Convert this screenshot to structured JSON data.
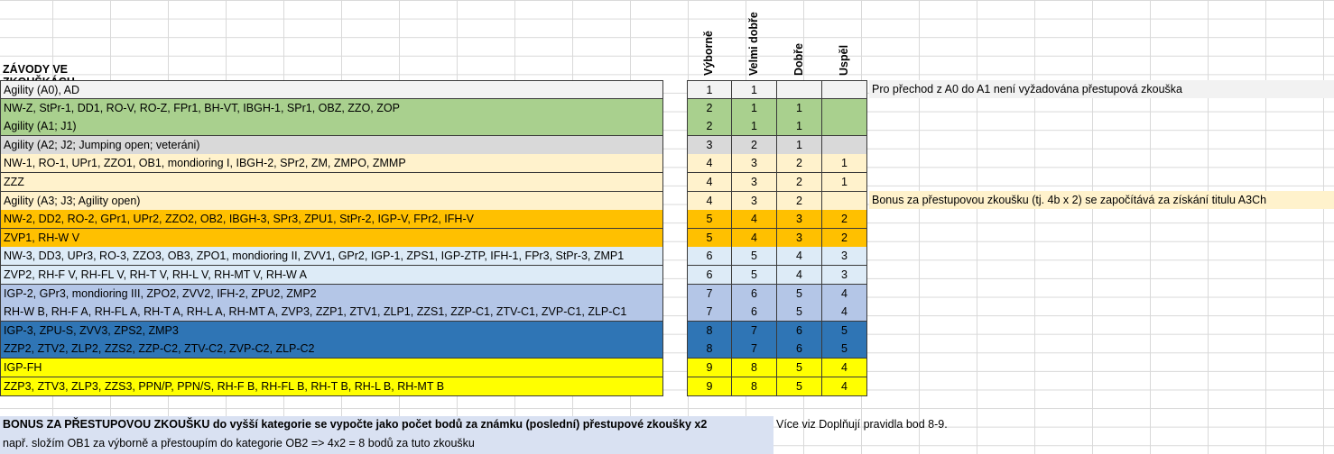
{
  "title": "ZÁVODY VE ZKOUŠKÁCH",
  "headers": [
    "Výborně",
    "Velmi dobře",
    "Dobře",
    "Uspěl"
  ],
  "rows": [
    {
      "name": "Agility (A0), AD",
      "scores": [
        "1",
        "1",
        "",
        ""
      ],
      "color": "#f2f2f2"
    },
    {
      "name": "NW-Z, StPr-1, DD1, RO-V, RO-Z, FPr1, BH-VT, IBGH-1, SPr1, OBZ, ZZO, ZOP",
      "scores": [
        "2",
        "1",
        "1",
        ""
      ],
      "color": "#a9d08e"
    },
    {
      "name": "Agility (A1; J1)",
      "scores": [
        "2",
        "1",
        "1",
        ""
      ],
      "color": "#a9d08e"
    },
    {
      "name": "Agility (A2; J2; Jumping open; veteráni)",
      "scores": [
        "3",
        "2",
        "1",
        ""
      ],
      "color": "#d9d9d9"
    },
    {
      "name": "NW-1, RO-1, UPr1, ZZO1, OB1, mondioring I, IBGH-2, SPr2, ZM, ZMPO, ZMMP",
      "scores": [
        "4",
        "3",
        "2",
        "1"
      ],
      "color": "#fff2cc"
    },
    {
      "name": "ZZZ",
      "scores": [
        "4",
        "3",
        "2",
        "1"
      ],
      "color": "#fff2cc"
    },
    {
      "name": "Agility (A3; J3; Agility open)",
      "scores": [
        "4",
        "3",
        "2",
        ""
      ],
      "color": "#fff2cc"
    },
    {
      "name": "NW-2, DD2, RO-2, GPr1, UPr2, ZZO2, OB2, IBGH-3, SPr3, ZPU1, StPr-2, IGP-V, FPr2, IFH-V",
      "scores": [
        "5",
        "4",
        "3",
        "2"
      ],
      "color": "#ffc000"
    },
    {
      "name": "ZVP1, RH-W V",
      "scores": [
        "5",
        "4",
        "3",
        "2"
      ],
      "color": "#ffc000"
    },
    {
      "name": "NW-3, DD3, UPr3, RO-3, ZZO3, OB3, ZPO1, mondioring II, ZVV1, GPr2, IGP-1, ZPS1, IGP-ZTP, IFH-1, FPr3, StPr-3, ZMP1",
      "scores": [
        "6",
        "5",
        "4",
        "3"
      ],
      "color": "#ddebf7"
    },
    {
      "name": "ZVP2, RH-F V, RH-FL V, RH-T V, RH-L V, RH-MT V, RH-W A",
      "scores": [
        "6",
        "5",
        "4",
        "3"
      ],
      "color": "#ddebf7"
    },
    {
      "name": "IGP-2, GPr3, mondioring III, ZPO2, ZVV2, IFH-2, ZPU2, ZMP2",
      "scores": [
        "7",
        "6",
        "5",
        "4"
      ],
      "color": "#b4c6e7"
    },
    {
      "name": "RH-W B, RH-F A, RH-FL A, RH-T A, RH-L A, RH-MT A, ZVP3, ZZP1, ZTV1, ZLP1, ZZS1, ZZP-C1, ZTV-C1, ZVP-C1, ZLP-C1",
      "scores": [
        "7",
        "6",
        "5",
        "4"
      ],
      "color": "#b4c6e7"
    },
    {
      "name": "IGP-3, ZPU-S, ZVV3, ZPS2, ZMP3",
      "scores": [
        "8",
        "7",
        "6",
        "5"
      ],
      "color": "#2f75b5"
    },
    {
      "name": "ZZP2, ZTV2, ZLP2, ZZS2, ZZP-C2, ZTV-C2, ZVP-C2, ZLP-C2",
      "scores": [
        "8",
        "7",
        "6",
        "5"
      ],
      "color": "#2f75b5"
    },
    {
      "name": "IGP-FH",
      "scores": [
        "9",
        "8",
        "5",
        "4"
      ],
      "color": "#ffff00"
    },
    {
      "name": "ZZP3, ZTV3, ZLP3, ZZS3, PPN/P, PPN/S, RH-F B, RH-FL B, RH-T B, RH-L B, RH-MT B",
      "scores": [
        "9",
        "8",
        "5",
        "4"
      ],
      "color": "#ffff00"
    }
  ],
  "notes": {
    "a0": "Pro přechod z A0 do A1 není vyžadována přestupová zkouška",
    "a3": "Bonus za přestupovou zkoušku (tj. 4b x 2) se započítává za získání titulu A3Ch"
  },
  "bonus": {
    "line1": "BONUS ZA PŘESTUPOVOU ZKOUŠKU do vyšší kategorie se vypočte jako počet bodů za známku (poslední) přestupové zkoušky x2",
    "line2": "např. složím OB1 za výborně a přestoupím do kategorie OB2 => 4x2 = 8 bodů za tuto zkoušku",
    "more": "Více viz Doplňují pravidla bod 8-9."
  }
}
